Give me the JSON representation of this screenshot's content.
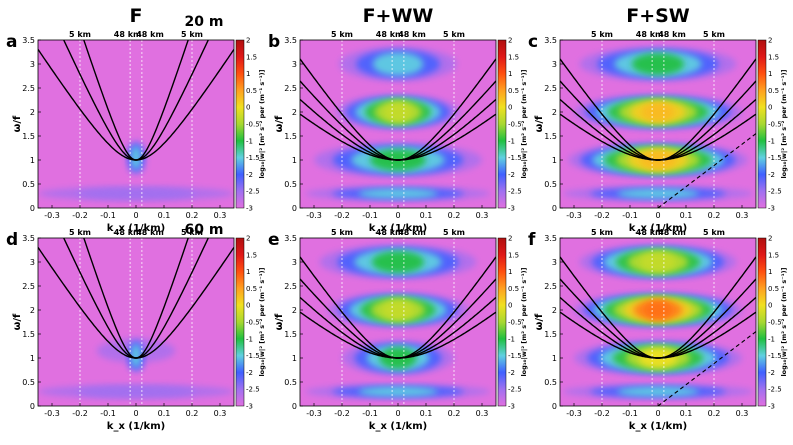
{
  "figure": {
    "column_titles": [
      "F",
      "F+WW",
      "F+SW"
    ],
    "row_depths": [
      "20 m",
      "60 m"
    ],
    "panel_labels": [
      "a",
      "b",
      "c",
      "d",
      "e",
      "f"
    ],
    "top_axis_labels": [
      "5 km",
      "48 km",
      "48 km",
      "5 km"
    ],
    "colorbar_label": "log₁₀|w|² [m² s⁻² per (m⁻¹ s⁻¹)]",
    "colorbar_ticks": [
      "2",
      "1.5",
      "1",
      "0.5",
      "0",
      "-0.5",
      "-1",
      "-1.5",
      "-2",
      "-2.5",
      "-3"
    ],
    "colors": {
      "background_magenta": "#e070e0",
      "dispersion_curve": "#000000",
      "grid_dash": "#ffffff"
    }
  },
  "chart_data": [
    {
      "type": "heatmap",
      "panel": "a",
      "title": "F",
      "depth": "20 m",
      "xlabel": "k_x (1/km)",
      "ylabel": "ω/f",
      "xlim": [
        -0.35,
        0.35
      ],
      "ylim": [
        0,
        3.5
      ],
      "xticks": [
        "-0.3",
        "-0.2",
        "-0.1",
        "0",
        "0.1",
        "0.2",
        "0.3"
      ],
      "yticks": [
        "0",
        "0.5",
        "1",
        "1.5",
        "2",
        "2.5",
        "3",
        "3.5"
      ],
      "color_range": [
        -3,
        2
      ],
      "energy_bands": [
        {
          "omega": 1.05,
          "halfwidth_k": 0.04,
          "level": -1.5
        },
        {
          "omega": 0.3,
          "halfwidth_k": 0.35,
          "level": -2.5
        }
      ],
      "dispersion_curves_n": [
        1,
        2,
        3
      ],
      "has_dashed_line": false
    },
    {
      "type": "heatmap",
      "panel": "b",
      "title": "F+WW",
      "depth": "20 m",
      "xlabel": "k_x (1/km)",
      "ylabel": "ω/f",
      "xlim": [
        -0.35,
        0.35
      ],
      "ylim": [
        0,
        3.5
      ],
      "xticks": [
        "-0.3",
        "-0.2",
        "-0.1",
        "0",
        "0.1",
        "0.2",
        "0.3"
      ],
      "yticks": [
        "0",
        "0.5",
        "1",
        "1.5",
        "2",
        "2.5",
        "3",
        "3.5"
      ],
      "color_range": [
        -3,
        2
      ],
      "energy_bands": [
        {
          "omega": 3.0,
          "halfwidth_k": 0.21,
          "level": -1.5
        },
        {
          "omega": 2.0,
          "halfwidth_k": 0.22,
          "level": -0.3
        },
        {
          "omega": 1.0,
          "halfwidth_k": 0.3,
          "level": -1.0
        },
        {
          "omega": 0.3,
          "halfwidth_k": 0.33,
          "level": -1.5
        }
      ],
      "dispersion_curves_n": [
        1,
        2,
        3,
        4
      ],
      "has_dashed_line": false
    },
    {
      "type": "heatmap",
      "panel": "c",
      "title": "F+SW",
      "depth": "20 m",
      "xlabel": "k_x (1/km)",
      "ylabel": "ω/f",
      "xlim": [
        -0.35,
        0.35
      ],
      "ylim": [
        0,
        3.5
      ],
      "xticks": [
        "-0.3",
        "-0.2",
        "-0.1",
        "0",
        "0.1",
        "0.2",
        "0.3"
      ],
      "yticks": [
        "0",
        "0.5",
        "1",
        "1.5",
        "2",
        "2.5",
        "3",
        "3.5"
      ],
      "color_range": [
        -3,
        2
      ],
      "energy_bands": [
        {
          "omega": 3.0,
          "halfwidth_k": 0.28,
          "level": -1.0
        },
        {
          "omega": 2.0,
          "halfwidth_k": 0.3,
          "level": 0.3
        },
        {
          "omega": 1.0,
          "halfwidth_k": 0.32,
          "level": 0.3
        },
        {
          "omega": 0.3,
          "halfwidth_k": 0.34,
          "level": -1.5
        }
      ],
      "dispersion_curves_n": [
        1,
        2,
        3,
        4
      ],
      "has_dashed_line": true
    },
    {
      "type": "heatmap",
      "panel": "d",
      "title": "F",
      "depth": "60 m",
      "xlabel": "k_x (1/km)",
      "ylabel": "ω/f",
      "xlim": [
        -0.35,
        0.35
      ],
      "ylim": [
        0,
        3.5
      ],
      "xticks": [
        "-0.3",
        "-0.2",
        "-0.1",
        "0",
        "0.1",
        "0.2",
        "0.3"
      ],
      "yticks": [
        "0",
        "0.5",
        "1",
        "1.5",
        "2",
        "2.5",
        "3",
        "3.5"
      ],
      "color_range": [
        -3,
        2
      ],
      "energy_bands": [
        {
          "omega": 1.15,
          "halfwidth_k": 0.14,
          "level": -2.6
        },
        {
          "omega": 1.05,
          "halfwidth_k": 0.04,
          "level": -1.5
        },
        {
          "omega": 0.3,
          "halfwidth_k": 0.35,
          "level": -2.5
        }
      ],
      "dispersion_curves_n": [
        1,
        2,
        3
      ],
      "has_dashed_line": false
    },
    {
      "type": "heatmap",
      "panel": "e",
      "title": "F+WW",
      "depth": "60 m",
      "xlabel": "k_x (1/km)",
      "ylabel": "ω/f",
      "xlim": [
        -0.35,
        0.35
      ],
      "ylim": [
        0,
        3.5
      ],
      "xticks": [
        "-0.3",
        "-0.2",
        "-0.1",
        "0",
        "0.1",
        "0.2",
        "0.3"
      ],
      "yticks": [
        "0",
        "0.5",
        "1",
        "1.5",
        "2",
        "2.5",
        "3",
        "3.5"
      ],
      "color_range": [
        -3,
        2
      ],
      "energy_bands": [
        {
          "omega": 3.0,
          "halfwidth_k": 0.28,
          "level": -1.0
        },
        {
          "omega": 2.0,
          "halfwidth_k": 0.25,
          "level": -0.3
        },
        {
          "omega": 1.0,
          "halfwidth_k": 0.2,
          "level": -1.0
        },
        {
          "omega": 0.3,
          "halfwidth_k": 0.33,
          "level": -1.5
        }
      ],
      "dispersion_curves_n": [
        1,
        2,
        3,
        4
      ],
      "has_dashed_line": false
    },
    {
      "type": "heatmap",
      "panel": "f",
      "title": "F+SW",
      "depth": "60 m",
      "xlabel": "k_x (1/km)",
      "ylabel": "ω/f",
      "xlim": [
        -0.35,
        0.35
      ],
      "ylim": [
        0,
        3.5
      ],
      "xticks": [
        "-0.3",
        "-0.2",
        "-0.1",
        "0",
        "0.1",
        "0.2",
        "0.3"
      ],
      "yticks": [
        "0",
        "0.5",
        "1",
        "1.5",
        "2",
        "2.5",
        "3",
        "3.5"
      ],
      "color_range": [
        -3,
        2
      ],
      "energy_bands": [
        {
          "omega": 3.0,
          "halfwidth_k": 0.28,
          "level": -0.3
        },
        {
          "omega": 2.0,
          "halfwidth_k": 0.3,
          "level": 0.8
        },
        {
          "omega": 1.0,
          "halfwidth_k": 0.3,
          "level": 0.0
        },
        {
          "omega": 0.3,
          "halfwidth_k": 0.34,
          "level": -1.5
        }
      ],
      "dispersion_curves_n": [
        1,
        2,
        3,
        4
      ],
      "has_dashed_line": true
    }
  ]
}
